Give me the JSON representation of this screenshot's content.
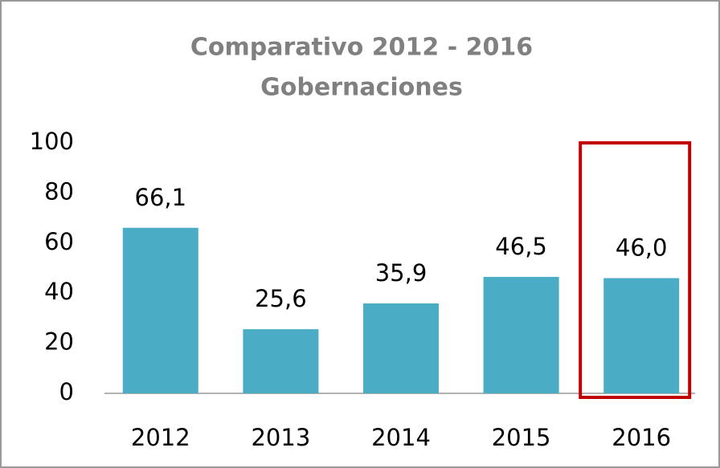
{
  "chart_data": {
    "type": "bar",
    "title": "Comparativo 2012 - 2016",
    "subtitle": "Gobernaciones",
    "categories": [
      "2012",
      "2013",
      "2014",
      "2015",
      "2016"
    ],
    "values": [
      66.1,
      25.6,
      35.9,
      46.5,
      46.0
    ],
    "value_labels": [
      "66,1",
      "25,6",
      "35,9",
      "46,5",
      "46,0"
    ],
    "color": "#4bacc6",
    "ylim": [
      0,
      100
    ],
    "yticks": [
      0,
      20,
      40,
      60,
      80,
      100
    ],
    "grid": false,
    "highlight": {
      "category": "2016",
      "color": "#c00000"
    }
  }
}
